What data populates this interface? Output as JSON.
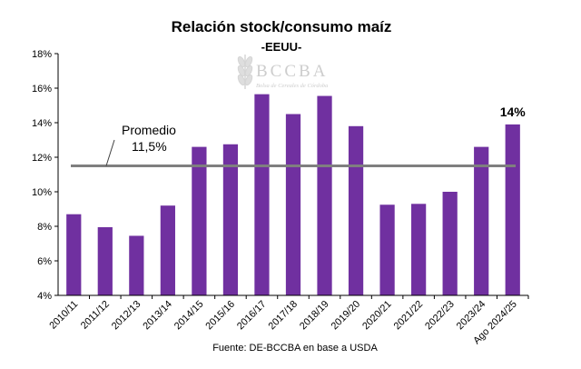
{
  "chart_data": {
    "type": "bar",
    "title": "Relación stock/consumo maíz",
    "subtitle": "-EEUU-",
    "categories": [
      "2010/11",
      "2011/12",
      "2012/13",
      "2013/14",
      "2014/15",
      "2015/16",
      "2016/17",
      "2017/18",
      "2018/19",
      "2019/20",
      "2020/21",
      "2021/22",
      "2022/23",
      "2023/24",
      "Ago 2024/25"
    ],
    "values": [
      8.7,
      7.95,
      7.45,
      9.2,
      12.6,
      12.75,
      15.65,
      14.5,
      15.55,
      13.8,
      9.25,
      9.3,
      10.0,
      12.6,
      13.9
    ],
    "ylim": [
      4,
      18
    ],
    "yticks": [
      4,
      6,
      8,
      10,
      12,
      14,
      16,
      18
    ],
    "ytick_labels": [
      "4%",
      "6%",
      "8%",
      "10%",
      "12%",
      "14%",
      "16%",
      "18%"
    ],
    "average": {
      "value": 11.5,
      "label_line1": "Promedio",
      "label_line2": "11,5%"
    },
    "last_bar_label": "14%",
    "bar_color": "#7030a0",
    "average_line_color": "#7f7f7f",
    "grid": false,
    "legend": "none",
    "source": "Fuente: DE-BCCBA en base a USDA",
    "watermark": {
      "text": "BCCBA",
      "subtext": "Bolsa de Cereales de Córdoba"
    }
  }
}
